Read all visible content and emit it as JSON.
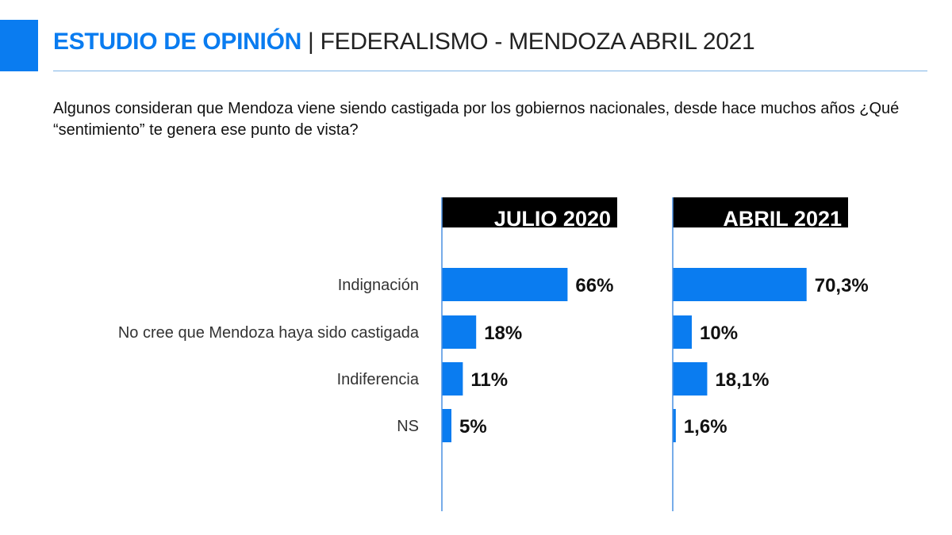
{
  "header": {
    "title_bold": "ESTUDIO DE OPINIÓN",
    "separator": "|",
    "title_rest": "FEDERALISMO - MENDOZA ABRIL 2021"
  },
  "question": "Algunos consideran que Mendoza viene siendo castigada por los gobiernos nacionales, desde hace muchos años ¿Qué “sentimiento” te genera ese punto de vista?",
  "chart_data": {
    "type": "bar",
    "orientation": "horizontal",
    "categories": [
      "Indignación",
      "No cree que Mendoza haya sido castigada",
      "Indiferencia",
      "NS"
    ],
    "series": [
      {
        "name": "JULIO 2020",
        "values": [
          66,
          18,
          11,
          5
        ],
        "labels": [
          "66%",
          "18%",
          "11%",
          "5%"
        ]
      },
      {
        "name": "ABRIL 2021",
        "values": [
          70.3,
          10,
          18.1,
          1.6
        ],
        "labels": [
          "70,3%",
          "10%",
          "18,1%",
          "1,6%"
        ]
      }
    ],
    "bar_color": "#0a7cf0",
    "header_color": "#000000",
    "axis_color": "#4a90e2"
  }
}
